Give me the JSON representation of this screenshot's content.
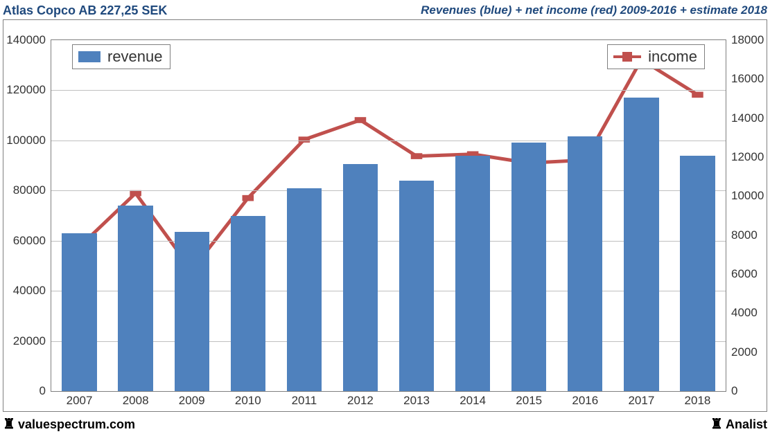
{
  "header": {
    "title_left": "Atlas Copco AB 227,25 SEK",
    "title_right": "Revenues (blue) + net income (red) 2009-2016 + estimate 2018",
    "title_color": "#1f497d"
  },
  "chart": {
    "type": "bar+line-dual-axis",
    "background_color": "#ffffff",
    "plot_border_color": "#7f7f7f",
    "grid_color": "#bfbfbf",
    "categories": [
      "2007",
      "2008",
      "2009",
      "2010",
      "2011",
      "2012",
      "2013",
      "2014",
      "2015",
      "2016",
      "2017",
      "2018"
    ],
    "revenue": {
      "label": "revenue",
      "values": [
        63000,
        74000,
        63500,
        70000,
        81000,
        90500,
        84000,
        94000,
        99000,
        101500,
        117000,
        94000
      ],
      "color": "#4f81bd",
      "axis": "left",
      "bar_width_ratio": 0.62
    },
    "income": {
      "label": "income",
      "values": [
        7400,
        10150,
        6200,
        9900,
        12900,
        13900,
        12050,
        12150,
        11700,
        11850,
        17000,
        15200
      ],
      "color": "#c0504d",
      "axis": "right",
      "line_width": 5,
      "marker_size": 16,
      "marker_shape": "square"
    },
    "left_axis": {
      "min": 0,
      "max": 140000,
      "ticks": [
        0,
        20000,
        40000,
        60000,
        80000,
        100000,
        120000,
        140000
      ]
    },
    "right_axis": {
      "min": 0,
      "max": 18000,
      "ticks": [
        0,
        2000,
        4000,
        6000,
        8000,
        10000,
        12000,
        14000,
        16000,
        18000
      ]
    },
    "legend": {
      "revenue_pos": "top-left",
      "income_pos": "top-right",
      "border_color": "#7f7f7f",
      "fontsize": 22
    },
    "tick_fontsize": 17,
    "xlabel_fontsize": 17
  },
  "footer": {
    "left_text": "valuespectrum.com",
    "right_text": "Analist",
    "icon": "♜"
  }
}
